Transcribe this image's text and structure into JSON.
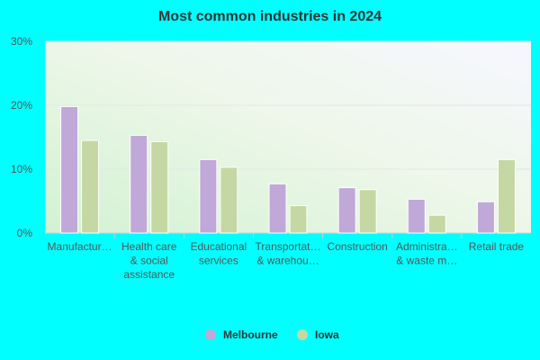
{
  "chart_data": {
    "type": "bar",
    "title": "Most common industries in 2024",
    "xlabel": "",
    "ylabel": "",
    "ylim": [
      0,
      30
    ],
    "yticks": [
      {
        "value": 0,
        "label": "0%"
      },
      {
        "value": 10,
        "label": "10%"
      },
      {
        "value": 20,
        "label": "20%"
      },
      {
        "value": 30,
        "label": "30%"
      }
    ],
    "grid": true,
    "legend_position": "bottom",
    "categories": [
      [
        "Manufactur…"
      ],
      [
        "Health care",
        "& social",
        "assistance"
      ],
      [
        "Educational",
        "services"
      ],
      [
        "Transportat…",
        "& warehou…"
      ],
      [
        "Construction"
      ],
      [
        "Administra…",
        "& waste m…"
      ],
      [
        "Retail trade"
      ]
    ],
    "series": [
      {
        "name": "Melbourne",
        "color": "#c0a8d8",
        "values": [
          19.8,
          15.3,
          11.5,
          7.7,
          7.1,
          5.3,
          4.9
        ]
      },
      {
        "name": "Iowa",
        "color": "#c5d8a4",
        "values": [
          14.5,
          14.3,
          10.3,
          4.3,
          6.8,
          2.8,
          11.5
        ]
      }
    ]
  }
}
